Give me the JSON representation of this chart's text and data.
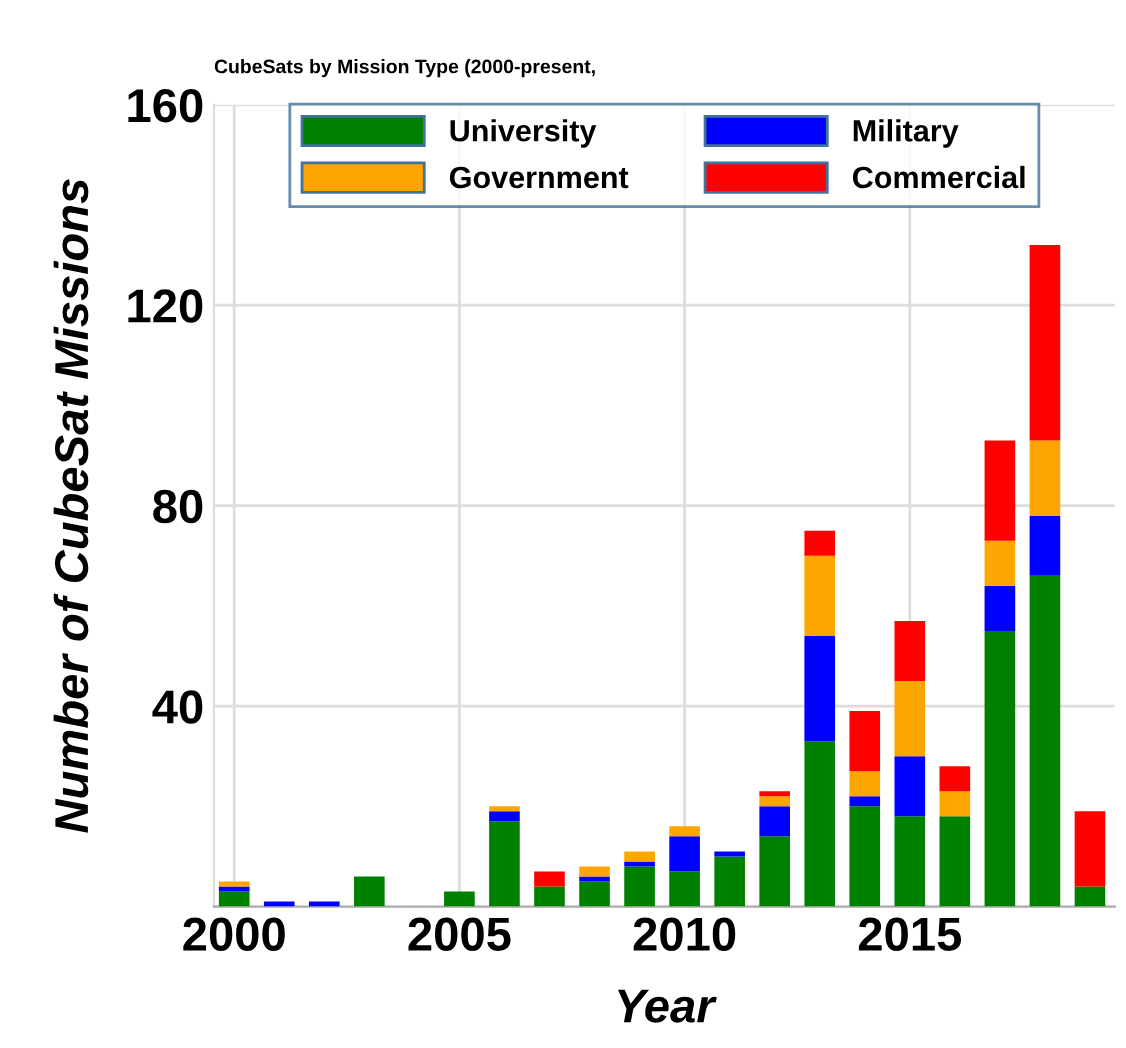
{
  "chart_data": {
    "type": "bar",
    "stacked": true,
    "title": "CubeSats by Mission Type (2000-present,",
    "xlabel": "Year",
    "ylabel": "Number of CubeSat Missions",
    "x": [
      2000,
      2001,
      2002,
      2003,
      2004,
      2005,
      2006,
      2007,
      2008,
      2009,
      2010,
      2011,
      2012,
      2013,
      2014,
      2015,
      2016,
      2017,
      2018,
      2019
    ],
    "series": [
      {
        "name": "University",
        "color": "#008000",
        "values": [
          3,
          0,
          0,
          6,
          0,
          3,
          17,
          4,
          5,
          8,
          7,
          10,
          14,
          33,
          20,
          18,
          18,
          55,
          66,
          4
        ]
      },
      {
        "name": "Military",
        "color": "#0000ff",
        "values": [
          1,
          1,
          1,
          0,
          0,
          0,
          2,
          0,
          1,
          1,
          7,
          1,
          6,
          21,
          2,
          12,
          0,
          9,
          12,
          0
        ]
      },
      {
        "name": "Government",
        "color": "#ffa500",
        "values": [
          1,
          0,
          0,
          0,
          0,
          0,
          1,
          0,
          2,
          2,
          2,
          0,
          2,
          16,
          5,
          15,
          5,
          9,
          15,
          0
        ]
      },
      {
        "name": "Commercial",
        "color": "#ff0000",
        "values": [
          0,
          0,
          0,
          0,
          0,
          0,
          0,
          3,
          0,
          0,
          0,
          0,
          1,
          5,
          12,
          12,
          5,
          20,
          39,
          15
        ]
      }
    ],
    "xlim": [
      1999.55,
      2019.55
    ],
    "xticks": [
      2000,
      2005,
      2010,
      2015
    ],
    "ylim": [
      0,
      160
    ],
    "yticks": [
      40,
      80,
      120,
      160
    ],
    "grid": true,
    "legend": "top"
  }
}
